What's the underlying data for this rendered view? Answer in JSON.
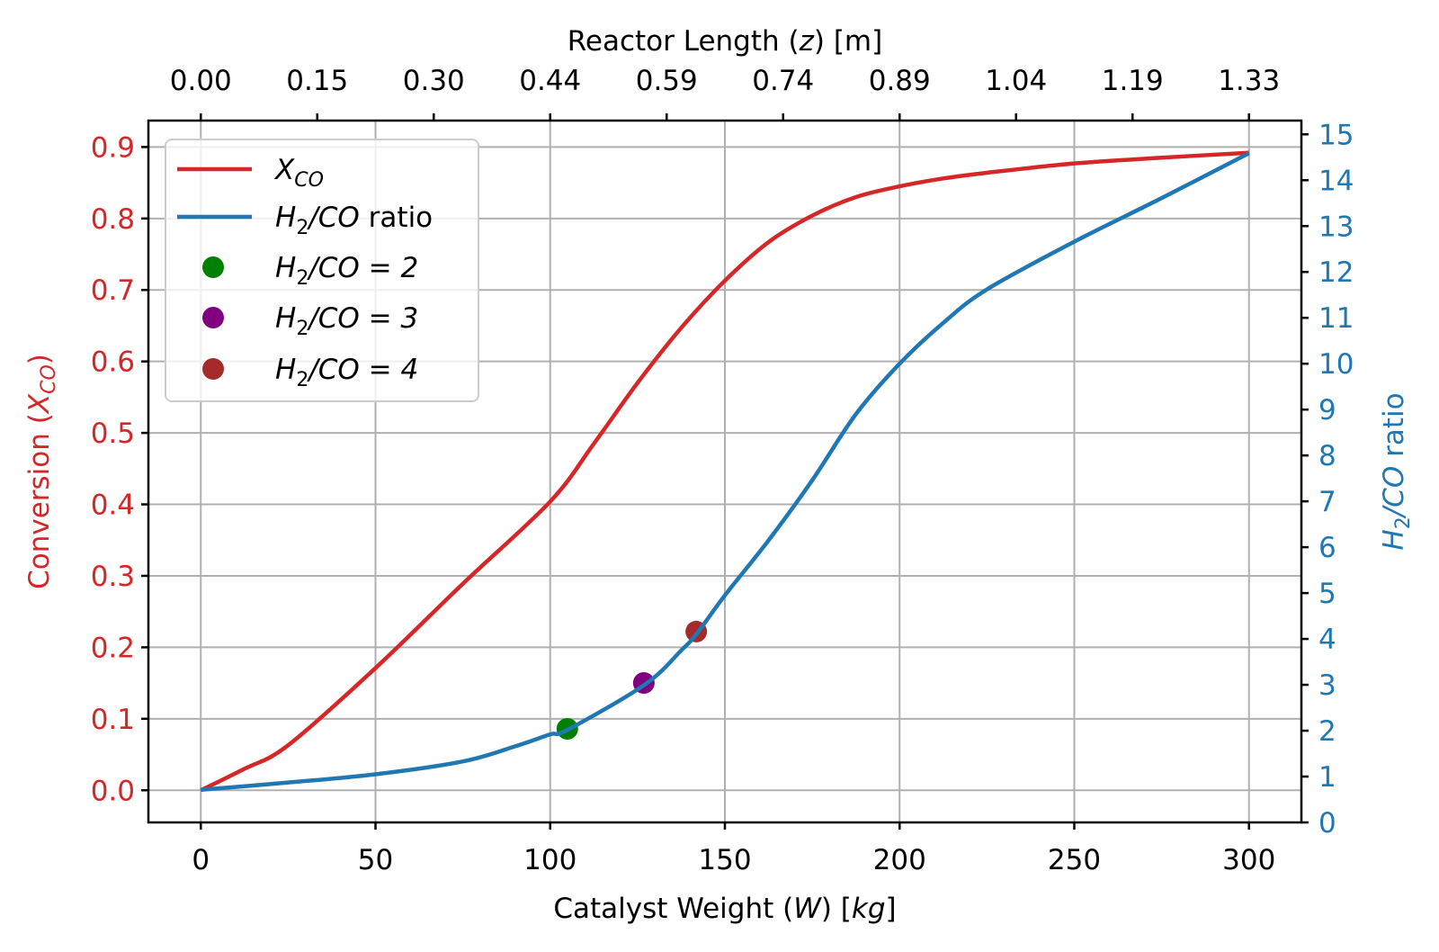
{
  "chart_data": {
    "type": "line",
    "xlabel": {
      "pre": "Catalyst Weight (",
      "var": "W",
      "mid": ") [",
      "unit": "kg",
      "post": "]"
    },
    "top_xlabel": {
      "pre": "Reactor Length (",
      "var": "z",
      "post": ") [m]"
    },
    "ylabel_left": {
      "pre": "Conversion (",
      "var": "X",
      "sub": "CO",
      "post": ")"
    },
    "ylabel_right": {
      "var": "H",
      "sub": "2",
      "rest": "/CO",
      "post": " ratio"
    },
    "xlim": [
      -15,
      315
    ],
    "ylim_left": [
      -0.045,
      0.937
    ],
    "ylim_right": [
      0,
      15.3
    ],
    "x_ticks": [
      "0",
      "50",
      "100",
      "150",
      "200",
      "250",
      "300"
    ],
    "x_tick_values": [
      0,
      50,
      100,
      150,
      200,
      250,
      300
    ],
    "top_x_ticks": [
      "0.00",
      "0.15",
      "0.30",
      "0.44",
      "0.59",
      "0.74",
      "0.89",
      "1.04",
      "1.19",
      "1.33"
    ],
    "top_x_tick_positions_in_W": [
      0,
      33.33,
      66.67,
      100,
      133.33,
      166.67,
      200,
      233.33,
      266.67,
      300
    ],
    "y_left_ticks": [
      "0.0",
      "0.1",
      "0.2",
      "0.3",
      "0.4",
      "0.5",
      "0.6",
      "0.7",
      "0.8",
      "0.9"
    ],
    "y_left_tick_values": [
      0,
      0.1,
      0.2,
      0.3,
      0.4,
      0.5,
      0.6,
      0.7,
      0.8,
      0.9
    ],
    "y_right_ticks": [
      "0",
      "1",
      "2",
      "3",
      "4",
      "5",
      "6",
      "7",
      "8",
      "9",
      "10",
      "11",
      "12",
      "13",
      "14",
      "15"
    ],
    "y_right_tick_values": [
      0,
      1,
      2,
      3,
      4,
      5,
      6,
      7,
      8,
      9,
      10,
      11,
      12,
      13,
      14,
      15
    ],
    "grid": true,
    "legend_placement": "upper-left",
    "colors": {
      "left_axis": "#d62728",
      "right_axis": "#1f77b4"
    },
    "series": [
      {
        "name": "X_CO",
        "axis": "left",
        "color": "#d62728",
        "kind": "line",
        "x": [
          0,
          12.5,
          25,
          50,
          75,
          100,
          112.5,
          125,
          137.5,
          150,
          162.5,
          175,
          187.5,
          200,
          212.5,
          225,
          250,
          275,
          300
        ],
        "y": [
          0,
          0.03,
          0.063,
          0.171,
          0.289,
          0.404,
          0.485,
          0.57,
          0.647,
          0.713,
          0.767,
          0.804,
          0.83,
          0.845,
          0.856,
          0.864,
          0.877,
          0.885,
          0.892
        ]
      },
      {
        "name": "H2/CO ratio",
        "axis": "right",
        "color": "#1f77b4",
        "kind": "line",
        "x": [
          0,
          25,
          50,
          75,
          90,
          100,
          105,
          127,
          137.5,
          142,
          150,
          162.5,
          175,
          187.5,
          200,
          212.5,
          225,
          250,
          275,
          300
        ],
        "y": [
          0.71,
          0.87,
          1.05,
          1.33,
          1.66,
          1.92,
          2.02,
          3.0,
          3.75,
          4.12,
          4.95,
          6.15,
          7.46,
          8.9,
          10.0,
          10.89,
          11.62,
          12.66,
          13.61,
          14.59
        ]
      },
      {
        "name": "H2/CO = 2",
        "axis": "right",
        "color": "#008000",
        "kind": "point",
        "x": [
          104.9
        ],
        "y": [
          2.04
        ]
      },
      {
        "name": "H2/CO = 3",
        "axis": "right",
        "color": "#800080",
        "kind": "point",
        "x": [
          126.8
        ],
        "y": [
          3.04
        ]
      },
      {
        "name": "H2/CO = 4",
        "axis": "right",
        "color": "#a52a2a",
        "kind": "point",
        "x": [
          141.8
        ],
        "y": [
          4.16
        ]
      }
    ],
    "legend": [
      {
        "var": "X",
        "sub": "CO",
        "rest": "",
        "post": ""
      },
      {
        "var": "H",
        "sub": "2",
        "rest": "/CO",
        "post": " ratio"
      },
      {
        "var": "H",
        "sub": "2",
        "rest": "/CO",
        "post": " = 2"
      },
      {
        "var": "H",
        "sub": "2",
        "rest": "/CO",
        "post": " = 3"
      },
      {
        "var": "H",
        "sub": "2",
        "rest": "/CO",
        "post": " = 4"
      }
    ]
  }
}
